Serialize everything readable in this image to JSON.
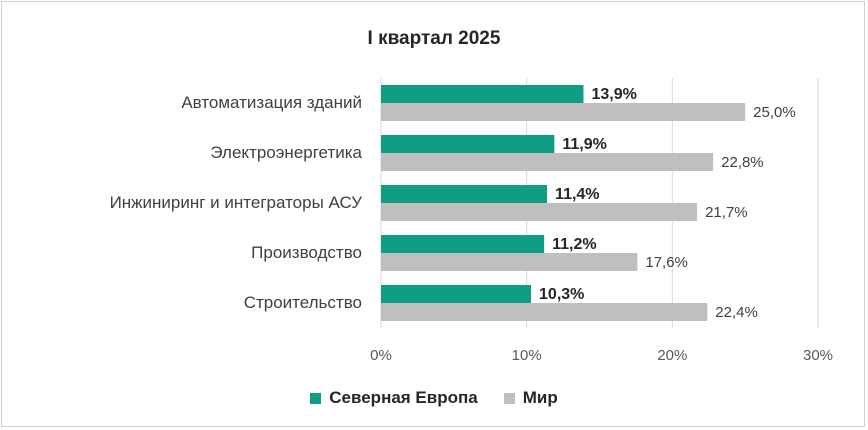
{
  "chart_data": {
    "type": "bar",
    "orientation": "horizontal",
    "title": "I квартал 2025",
    "categories": [
      "Автоматизация зданий",
      "Электроэнергетика",
      "Инжиниринг и интеграторы АСУ",
      "Производство",
      "Строительство"
    ],
    "series": [
      {
        "name": "Северная Европа",
        "color": "#0f9e84",
        "values": [
          13.9,
          11.9,
          11.4,
          11.2,
          10.3
        ],
        "labels": [
          "13,9%",
          "11,9%",
          "11,4%",
          "11,2%",
          "10,3%"
        ]
      },
      {
        "name": "Мир",
        "color": "#bfbfbf",
        "values": [
          25.0,
          22.8,
          21.7,
          17.6,
          22.4
        ],
        "labels": [
          "25,0%",
          "22,8%",
          "21,7%",
          "17,6%",
          "22,4%"
        ]
      }
    ],
    "xlim": [
      0,
      30
    ],
    "xticks": [
      "0%",
      "10%",
      "20%",
      "30%"
    ],
    "grid": true,
    "legend_position": "bottom"
  }
}
